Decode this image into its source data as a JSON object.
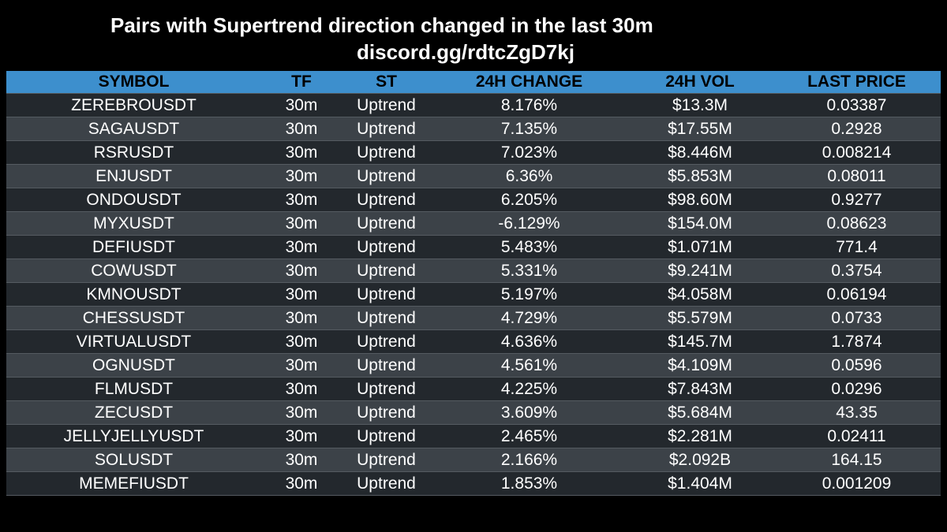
{
  "header": {
    "title": "Pairs with Supertrend direction changed in the last 30m",
    "subtitle": "discord.gg/rdtcZgD7kj"
  },
  "colors": {
    "background": "#000000",
    "header_bg": "#3d8fcd",
    "row_dark": "#23282d",
    "row_light": "#3c4248"
  },
  "table": {
    "columns": [
      "SYMBOL",
      "TF",
      "ST",
      "24H CHANGE",
      "24H VOL",
      "LAST PRICE"
    ],
    "rows": [
      [
        "ZEREBROUSDT",
        "30m",
        "Uptrend",
        "8.176%",
        "$13.3M",
        "0.03387"
      ],
      [
        "SAGAUSDT",
        "30m",
        "Uptrend",
        "7.135%",
        "$17.55M",
        "0.2928"
      ],
      [
        "RSRUSDT",
        "30m",
        "Uptrend",
        "7.023%",
        "$8.446M",
        "0.008214"
      ],
      [
        "ENJUSDT",
        "30m",
        "Uptrend",
        "6.36%",
        "$5.853M",
        "0.08011"
      ],
      [
        "ONDOUSDT",
        "30m",
        "Uptrend",
        "6.205%",
        "$98.60M",
        "0.9277"
      ],
      [
        "MYXUSDT",
        "30m",
        "Uptrend",
        "-6.129%",
        "$154.0M",
        "0.08623"
      ],
      [
        "DEFIUSDT",
        "30m",
        "Uptrend",
        "5.483%",
        "$1.071M",
        "771.4"
      ],
      [
        "COWUSDT",
        "30m",
        "Uptrend",
        "5.331%",
        "$9.241M",
        "0.3754"
      ],
      [
        "KMNOUSDT",
        "30m",
        "Uptrend",
        "5.197%",
        "$4.058M",
        "0.06194"
      ],
      [
        "CHESSUSDT",
        "30m",
        "Uptrend",
        "4.729%",
        "$5.579M",
        "0.0733"
      ],
      [
        "VIRTUALUSDT",
        "30m",
        "Uptrend",
        "4.636%",
        "$145.7M",
        "1.7874"
      ],
      [
        "OGNUSDT",
        "30m",
        "Uptrend",
        "4.561%",
        "$4.109M",
        "0.0596"
      ],
      [
        "FLMUSDT",
        "30m",
        "Uptrend",
        "4.225%",
        "$7.843M",
        "0.0296"
      ],
      [
        "ZECUSDT",
        "30m",
        "Uptrend",
        "3.609%",
        "$5.684M",
        "43.35"
      ],
      [
        "JELLYJELLYUSDT",
        "30m",
        "Uptrend",
        "2.465%",
        "$2.281M",
        "0.02411"
      ],
      [
        "SOLUSDT",
        "30m",
        "Uptrend",
        "2.166%",
        "$2.092B",
        "164.15"
      ],
      [
        "MEMEFIUSDT",
        "30m",
        "Uptrend",
        "1.853%",
        "$1.404M",
        "0.001209"
      ]
    ]
  }
}
